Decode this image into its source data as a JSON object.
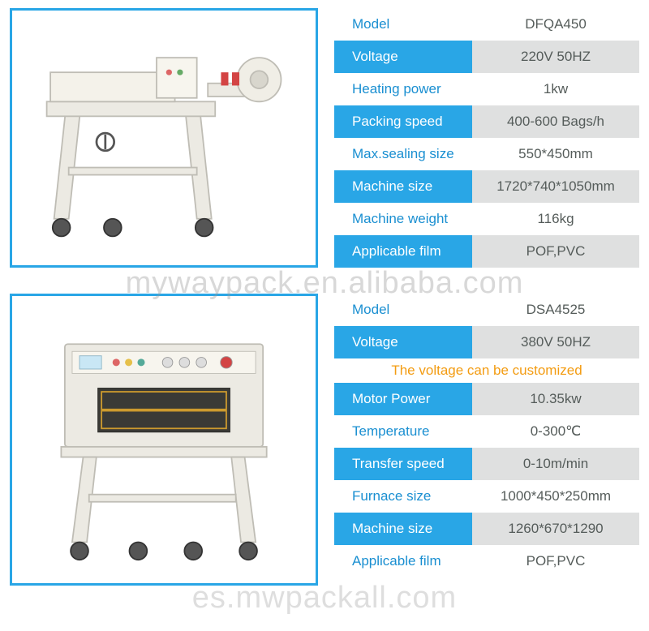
{
  "page_bg": "#ffffff",
  "border_color": "#29a6e6",
  "blue_bg": "#29a6e6",
  "gray_bg": "#dfe0e0",
  "label_text_blue": "#1a8fd1",
  "value_text_color": "#555c5a",
  "note_color": "#f39c12",
  "watermark1": "mywaypack.en.alibaba.com",
  "watermark2": "es.mwpackall.com",
  "product1": {
    "rows": [
      {
        "label": "Model",
        "value": "DFQA450",
        "label_style": "white",
        "value_style": "white"
      },
      {
        "label": "Voltage",
        "value": "220V 50HZ",
        "label_style": "blue",
        "value_style": "gray"
      },
      {
        "label": "Heating power",
        "value": "1kw",
        "label_style": "white",
        "value_style": "white"
      },
      {
        "label": "Packing speed",
        "value": "400-600 Bags/h",
        "label_style": "blue",
        "value_style": "gray"
      },
      {
        "label": "Max.sealing size",
        "value": "550*450mm",
        "label_style": "white",
        "value_style": "white"
      },
      {
        "label": "Machine size",
        "value": "1720*740*1050mm",
        "label_style": "blue",
        "value_style": "gray"
      },
      {
        "label": "Machine weight",
        "value": "116kg",
        "label_style": "white",
        "value_style": "white"
      },
      {
        "label": "Applicable film",
        "value": "POF,PVC",
        "label_style": "blue",
        "value_style": "gray"
      }
    ]
  },
  "product2": {
    "note": "The voltage can be customized",
    "rows": [
      {
        "label": "Model",
        "value": "DSA4525",
        "label_style": "white",
        "value_style": "white"
      },
      {
        "label": "Voltage",
        "value": "380V 50HZ",
        "label_style": "blue",
        "value_style": "gray"
      },
      {
        "type": "note"
      },
      {
        "label": "Motor Power",
        "value": "10.35kw",
        "label_style": "blue",
        "value_style": "gray"
      },
      {
        "label": "Temperature",
        "value": "0-300℃",
        "label_style": "white",
        "value_style": "white"
      },
      {
        "label": "Transfer speed",
        "value": "0-10m/min",
        "label_style": "blue",
        "value_style": "gray"
      },
      {
        "label": "Furnace size",
        "value": "1000*450*250mm",
        "label_style": "white",
        "value_style": "white"
      },
      {
        "label": "Machine size",
        "value": "1260*670*1290",
        "label_style": "blue",
        "value_style": "gray"
      },
      {
        "label": "Applicable film",
        "value": "POF,PVC",
        "label_style": "white",
        "value_style": "white"
      }
    ]
  }
}
